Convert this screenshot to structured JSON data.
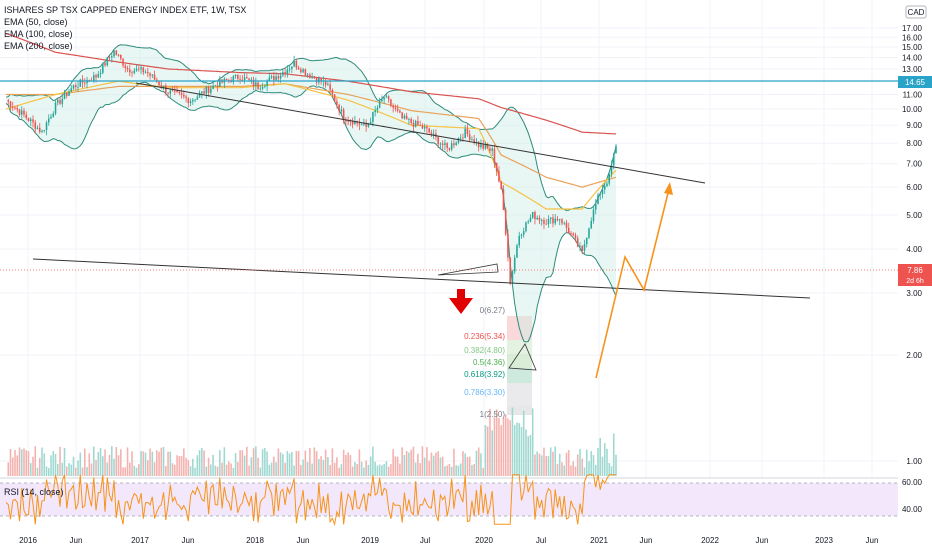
{
  "header": {
    "title": "ISHARES SP TSX CAPPED ENERGY INDEX ETF, 1W, TSX",
    "indicators": [
      "EMA (50, close)",
      "EMA (100, close)",
      "EMA (200, close)"
    ],
    "currency": "CAD",
    "rsi_label": "RSI (14, close)"
  },
  "price_tags": {
    "resistance": "14.65",
    "last": "7.86",
    "countdown": "2d 6h"
  },
  "colors": {
    "candle_up": "#26a69a",
    "candle_down": "#ef5350",
    "ema50": "#f7c244",
    "ema100": "#e9a25a",
    "ema200": "#d9534f",
    "bollinger": "#2e8b7a",
    "horizontal_line": "#2aa3c8",
    "projection": "#f7931a",
    "arrow": "#e00000",
    "rsi_line": "#f7931a"
  },
  "fib_levels": [
    {
      "label": "0(6.27)",
      "color": "#787b86"
    },
    {
      "label": "0.236(5.34)",
      "color": "#ef5350"
    },
    {
      "label": "0.382(4.80)",
      "color": "#81c784"
    },
    {
      "label": "0.5(4.36)",
      "color": "#4caf50"
    },
    {
      "label": "0.618(3.92)",
      "color": "#089981"
    },
    {
      "label": "0.786(3.30)",
      "color": "#64b5f6"
    },
    {
      "label": "1(2.50)",
      "color": "#787b86"
    }
  ],
  "rsi_ticks": [
    "60.00",
    "40.00"
  ],
  "chart_data": {
    "type": "line",
    "title": "ISHARES SP TSX CAPPED ENERGY INDEX ETF, 1W, TSX",
    "y_axis_ticks": [
      "17.00",
      "16.00",
      "15.00",
      "14.00",
      "13.00",
      "12.00",
      "11.00",
      "10.00",
      "9.00",
      "8.00",
      "7.00",
      "6.00",
      "5.00",
      "4.00",
      "3.00",
      "2.00",
      "1.00"
    ],
    "x_axis_ticks": [
      "2016",
      "Jun",
      "2017",
      "Jun",
      "2018",
      "Jun",
      "2019",
      "Jul",
      "2020",
      "Jul",
      "2021",
      "Jun",
      "2022",
      "Jun",
      "2023",
      "Jun"
    ],
    "x": [
      "2016-01",
      "2016-06",
      "2017-01",
      "2017-06",
      "2018-01",
      "2018-06",
      "2019-01",
      "2019-07",
      "2020-01",
      "2020-03",
      "2020-07",
      "2020-11",
      "2021-03"
    ],
    "series": [
      {
        "name": "Close",
        "values": [
          9.0,
          10.8,
          14.5,
          11.0,
          12.0,
          12.7,
          9.5,
          7.8,
          7.9,
          3.0,
          4.7,
          4.6,
          7.86
        ]
      },
      {
        "name": "EMA (50, close)",
        "values": [
          10.0,
          11.0,
          12.0,
          11.5,
          11.5,
          11.8,
          10.6,
          9.0,
          8.8,
          6.2,
          5.2,
          5.2,
          6.7
        ]
      },
      {
        "name": "EMA (100, close)",
        "values": [
          11.0,
          11.0,
          11.6,
          11.6,
          11.6,
          11.8,
          11.0,
          9.9,
          9.4,
          7.4,
          6.4,
          6.0,
          6.4
        ]
      },
      {
        "name": "EMA (200, close)",
        "values": [
          16.4,
          14.5,
          13.6,
          13.0,
          12.7,
          12.6,
          12.0,
          11.2,
          10.7,
          10.1,
          9.3,
          8.6,
          8.5
        ]
      }
    ],
    "ylim": [
      0.6,
      17.6
    ],
    "log_scale": true
  }
}
